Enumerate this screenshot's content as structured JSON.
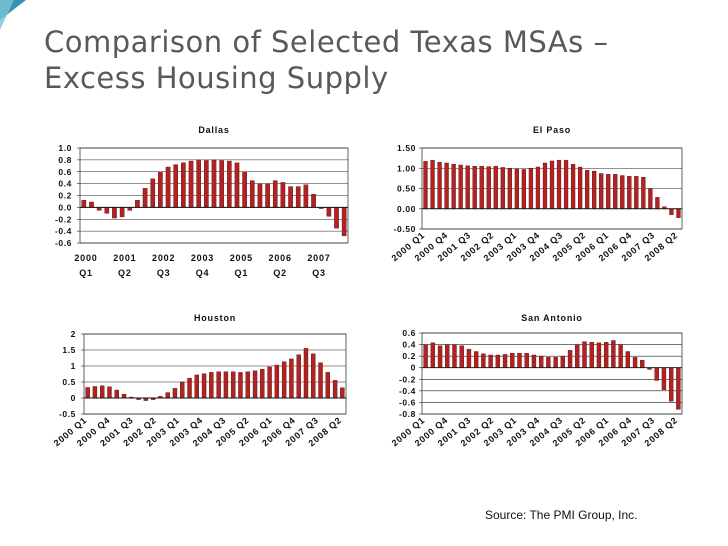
{
  "slide": {
    "title_line1": "Comparison of Selected Texas MSAs –",
    "title_line2": "Excess Housing Supply",
    "source": "Source:  The PMI Group, Inc."
  },
  "colors": {
    "bar_fill": "#b22222",
    "bar_stroke": "#5a0a0a",
    "accent_teal": "#3fa9b8",
    "title_text": "#565a5e"
  },
  "quarter_tick_labels": [
    "2000 Q1",
    "2000 Q4",
    "2001 Q3",
    "2002 Q2",
    "2003 Q1",
    "2003 Q4",
    "2004 Q3",
    "2005 Q2",
    "2006 Q1",
    "2006 Q4",
    "2007 Q3",
    "2008 Q2"
  ],
  "chart_data": [
    {
      "type": "bar",
      "title": "Dallas",
      "ylim": [
        -0.6,
        1.0
      ],
      "yticks": [
        "1.0",
        "0.8",
        "0.6",
        "0.4",
        "0.2",
        "0.0",
        "-0.2",
        "-0.4",
        "-0.6"
      ],
      "xtick_years": [
        "2000",
        "2001",
        "2002",
        "2003",
        "2005",
        "2006",
        "2007"
      ],
      "xtick_quarters": [
        "Q1",
        "Q2",
        "Q3",
        "Q4",
        "Q1",
        "Q2",
        "Q3"
      ],
      "grid": true,
      "values": [
        0.12,
        0.09,
        -0.05,
        -0.1,
        -0.18,
        -0.16,
        -0.05,
        0.12,
        0.32,
        0.48,
        0.6,
        0.68,
        0.72,
        0.75,
        0.78,
        0.8,
        0.79,
        0.8,
        0.79,
        0.78,
        0.75,
        0.6,
        0.45,
        0.4,
        0.4,
        0.45,
        0.42,
        0.35,
        0.35,
        0.38,
        0.22,
        -0.02,
        -0.15,
        -0.35,
        -0.48
      ]
    },
    {
      "type": "bar",
      "title": "El Paso",
      "ylim": [
        -0.5,
        1.5
      ],
      "yticks": [
        "1.50",
        "1.00",
        "0.50",
        "0.00",
        "-0.50"
      ],
      "grid": true,
      "values": [
        1.17,
        1.2,
        1.15,
        1.13,
        1.1,
        1.08,
        1.06,
        1.05,
        1.05,
        1.04,
        1.05,
        1.02,
        1.0,
        0.98,
        0.97,
        1.0,
        1.03,
        1.13,
        1.18,
        1.2,
        1.2,
        1.1,
        1.03,
        0.95,
        0.93,
        0.87,
        0.85,
        0.85,
        0.82,
        0.8,
        0.8,
        0.78,
        0.5,
        0.28,
        0.05,
        -0.15,
        -0.22
      ]
    },
    {
      "type": "bar",
      "title": "Houston",
      "ylim": [
        -0.5,
        2.0
      ],
      "yticks": [
        "2",
        "1.5",
        "1",
        "0.5",
        "0",
        "-0.5"
      ],
      "grid": true,
      "values": [
        0.33,
        0.36,
        0.38,
        0.35,
        0.25,
        0.12,
        0.03,
        -0.05,
        -0.08,
        -0.05,
        0.05,
        0.17,
        0.3,
        0.5,
        0.62,
        0.72,
        0.76,
        0.8,
        0.82,
        0.82,
        0.82,
        0.8,
        0.82,
        0.85,
        0.9,
        0.97,
        1.03,
        1.13,
        1.22,
        1.35,
        1.55,
        1.38,
        1.1,
        0.8,
        0.55,
        0.32
      ]
    },
    {
      "type": "bar",
      "title": "San Antonio",
      "ylim": [
        -0.8,
        0.6
      ],
      "yticks": [
        "0.6",
        "0.4",
        "0.2",
        "0",
        "-0.2",
        "-0.4",
        "-0.6",
        "-0.8"
      ],
      "grid": true,
      "values": [
        0.4,
        0.43,
        0.38,
        0.4,
        0.4,
        0.38,
        0.32,
        0.28,
        0.24,
        0.22,
        0.22,
        0.23,
        0.25,
        0.25,
        0.25,
        0.22,
        0.2,
        0.18,
        0.18,
        0.2,
        0.3,
        0.4,
        0.45,
        0.44,
        0.43,
        0.44,
        0.47,
        0.4,
        0.28,
        0.18,
        0.13,
        -0.03,
        -0.22,
        -0.38,
        -0.58,
        -0.72
      ]
    }
  ]
}
